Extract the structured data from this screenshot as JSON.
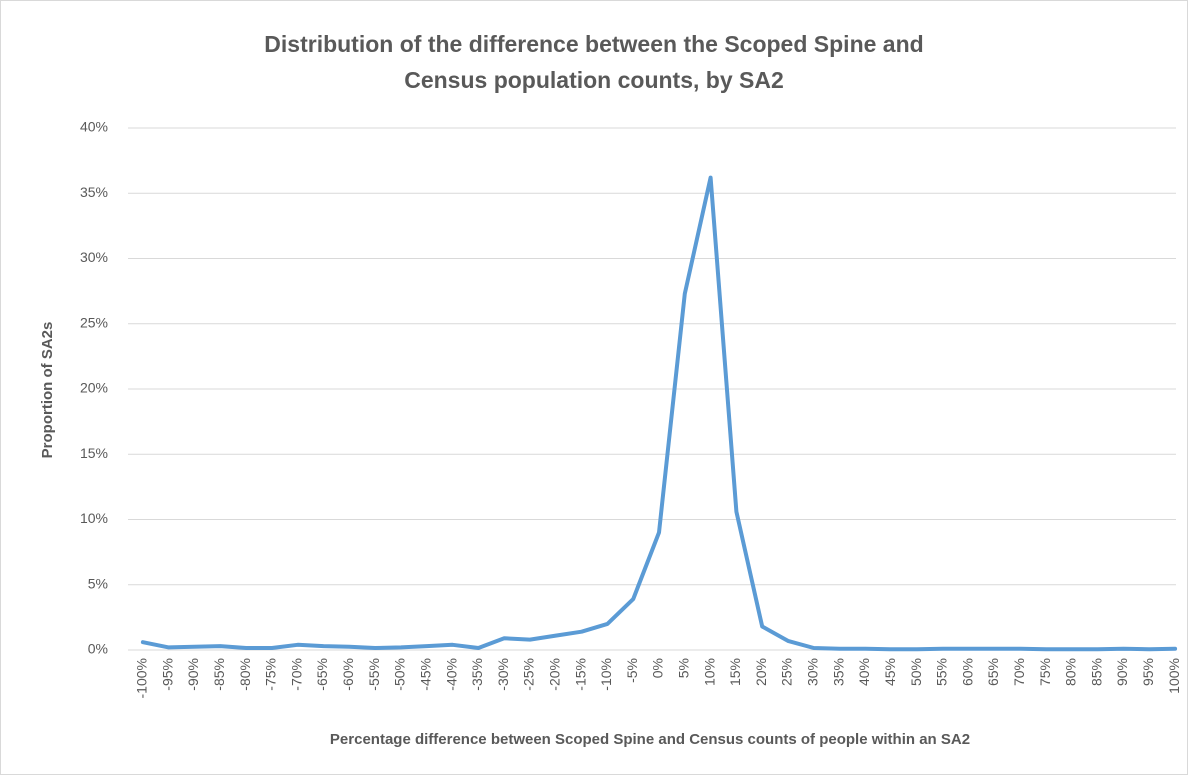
{
  "chart_data": {
    "type": "line",
    "title": "Distribution of the difference between the Scoped Spine and Census population counts, by SA2",
    "xlabel": "Percentage difference between Scoped Spine and Census counts of people within an SA2",
    "ylabel": "Proportion of SA2s",
    "categories": [
      "-100%",
      "-95%",
      "-90%",
      "-85%",
      "-80%",
      "-75%",
      "-70%",
      "-65%",
      "-60%",
      "-55%",
      "-50%",
      "-45%",
      "-40%",
      "-35%",
      "-30%",
      "-25%",
      "-20%",
      "-15%",
      "-10%",
      "-5%",
      "0%",
      "5%",
      "10%",
      "15%",
      "20%",
      "25%",
      "30%",
      "35%",
      "40%",
      "45%",
      "50%",
      "55%",
      "60%",
      "65%",
      "70%",
      "75%",
      "80%",
      "85%",
      "90%",
      "95%",
      "100%"
    ],
    "values": [
      0.6,
      0.2,
      0.25,
      0.3,
      0.15,
      0.15,
      0.4,
      0.3,
      0.25,
      0.15,
      0.2,
      0.3,
      0.4,
      0.15,
      0.9,
      0.8,
      1.1,
      1.4,
      2.0,
      3.9,
      9.0,
      27.3,
      36.2,
      10.6,
      1.8,
      0.7,
      0.15,
      0.1,
      0.1,
      0.05,
      0.05,
      0.1,
      0.1,
      0.1,
      0.1,
      0.05,
      0.05,
      0.05,
      0.1,
      0.05,
      0.1
    ],
    "color": "#5b9bd5",
    "ylim": [
      0,
      40
    ],
    "yticks": [
      {
        "value": 0,
        "label": "0%"
      },
      {
        "value": 5,
        "label": "5%"
      },
      {
        "value": 10,
        "label": "10%"
      },
      {
        "value": 15,
        "label": "15%"
      },
      {
        "value": 20,
        "label": "20%"
      },
      {
        "value": 25,
        "label": "25%"
      },
      {
        "value": 30,
        "label": "30%"
      },
      {
        "value": 35,
        "label": "35%"
      },
      {
        "value": 40,
        "label": "40%"
      }
    ],
    "grid": true
  }
}
